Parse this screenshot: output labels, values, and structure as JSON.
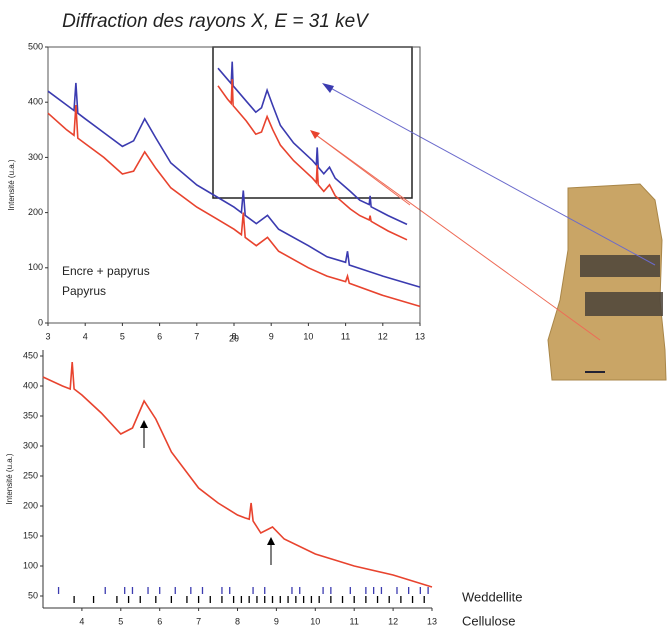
{
  "chart_data": [
    {
      "type": "line",
      "title": "Diffraction des rayons X, E = 31 keV",
      "x_label": "2θ",
      "y_label": "Intensité (u.a.)",
      "x": [
        3,
        3.5,
        3.7,
        3.75,
        3.8,
        4,
        4.5,
        5,
        5.3,
        5.6,
        5.9,
        6.3,
        7,
        7.5,
        8,
        8.2,
        8.25,
        8.3,
        8.6,
        8.9,
        9.2,
        10,
        10.5,
        11,
        11.05,
        11.1,
        12,
        13
      ],
      "series": [
        {
          "name": "Encre + papyrus",
          "color": "#3b3bb0",
          "values": [
            420,
            395,
            385,
            435,
            380,
            370,
            345,
            320,
            330,
            370,
            335,
            290,
            250,
            230,
            210,
            200,
            240,
            195,
            180,
            195,
            170,
            140,
            120,
            110,
            130,
            105,
            85,
            65
          ]
        },
        {
          "name": "Papyrus",
          "color": "#e8432e",
          "values": [
            380,
            350,
            340,
            395,
            335,
            325,
            300,
            270,
            275,
            310,
            280,
            245,
            210,
            190,
            170,
            160,
            200,
            155,
            140,
            155,
            130,
            100,
            85,
            75,
            85,
            72,
            50,
            30
          ]
        }
      ],
      "xlim": [
        3,
        13
      ],
      "xticks": [
        3,
        4,
        5,
        6,
        7,
        8,
        9,
        10,
        11,
        12,
        13
      ],
      "ylim": [
        0,
        500
      ],
      "yticks": [
        0,
        100,
        200,
        300,
        400,
        500
      ]
    },
    {
      "type": "line",
      "y_label": "Intensité (u.a.)",
      "x": [
        3,
        3.5,
        3.7,
        3.75,
        3.8,
        4,
        4.5,
        5,
        5.3,
        5.6,
        5.9,
        6.3,
        7,
        7.5,
        8,
        8.2,
        8.3,
        8.35,
        8.4,
        8.6,
        8.9,
        9.2,
        10,
        10.5,
        11,
        12,
        13
      ],
      "series": [
        {
          "color": "#e8432e",
          "values": [
            415,
            400,
            395,
            440,
            395,
            385,
            355,
            320,
            330,
            375,
            345,
            290,
            230,
            205,
            185,
            180,
            178,
            205,
            175,
            155,
            165,
            145,
            120,
            110,
            100,
            85,
            65
          ]
        }
      ],
      "reference_series": [
        {
          "name": "Weddellite",
          "color": "#3b3bb0",
          "x": [
            3.4,
            4.6,
            5.1,
            5.3,
            5.7,
            6.0,
            6.4,
            6.8,
            7.1,
            7.6,
            7.8,
            8.4,
            8.7,
            9.4,
            9.6,
            10.2,
            10.4,
            10.9,
            11.3,
            11.5,
            11.7,
            12.1,
            12.4,
            12.7,
            12.9
          ]
        },
        {
          "name": "Cellulose",
          "color": "#000000",
          "x": [
            3.8,
            4.3,
            4.9,
            5.2,
            5.5,
            5.9,
            6.3,
            6.7,
            7.0,
            7.3,
            7.6,
            7.9,
            8.1,
            8.3,
            8.5,
            8.7,
            8.9,
            9.1,
            9.3,
            9.5,
            9.7,
            9.9,
            10.1,
            10.4,
            10.7,
            11.0,
            11.3,
            11.6,
            11.9,
            12.2,
            12.5,
            12.8
          ]
        }
      ],
      "xlim": [
        3,
        13
      ],
      "xticks": [
        4,
        5,
        6,
        7,
        8,
        9,
        10,
        11,
        12,
        13
      ],
      "ylim": [
        30,
        460
      ],
      "yticks": [
        50,
        100,
        150,
        200,
        250,
        300,
        350,
        400,
        450
      ]
    }
  ]
}
